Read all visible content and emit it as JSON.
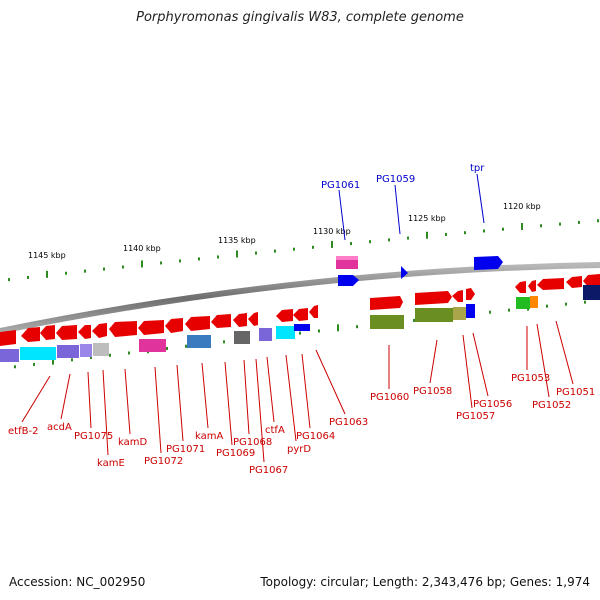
{
  "title": "Porphyromonas gingivalis W83, complete genome",
  "footer": {
    "accession": "Accession: NC_002950",
    "topology": "Topology: circular; Length: 2,343,476 bp; Genes: 1,974"
  },
  "colors": {
    "backbone": "#7a7a7a",
    "tick_outer": "#2e8b22",
    "tick_inner": "#2e8b22",
    "label_red": "#cc0000",
    "label_blue": "#0000cc",
    "scale_text": "#000000"
  },
  "scale_labels": [
    "1145 kbp",
    "1140 kbp",
    "1135 kbp",
    "1130 kbp",
    "1125 kbp",
    "1120 kbp"
  ],
  "genes_top": [
    {
      "label": "PG1061",
      "color": "#0000cc"
    },
    {
      "label": "PG1059",
      "color": "#0000cc"
    },
    {
      "label": "tpr",
      "color": "#0000cc"
    }
  ],
  "genes_bottom": [
    {
      "label": "etfB-2"
    },
    {
      "label": "acdA"
    },
    {
      "label": "PG1075"
    },
    {
      "label": "kamE"
    },
    {
      "label": "kamD"
    },
    {
      "label": "PG1072"
    },
    {
      "label": "PG1071"
    },
    {
      "label": "kamA"
    },
    {
      "label": "PG1069"
    },
    {
      "label": "PG1068"
    },
    {
      "label": "PG1067"
    },
    {
      "label": "ctfA"
    },
    {
      "label": "pyrD"
    },
    {
      "label": "PG1064"
    },
    {
      "label": "PG1063"
    },
    {
      "label": "PG1060"
    },
    {
      "label": "PG1058"
    },
    {
      "label": "PG1057"
    },
    {
      "label": "PG1056"
    },
    {
      "label": "PG1053"
    },
    {
      "label": "PG1052"
    },
    {
      "label": "PG1051"
    }
  ]
}
